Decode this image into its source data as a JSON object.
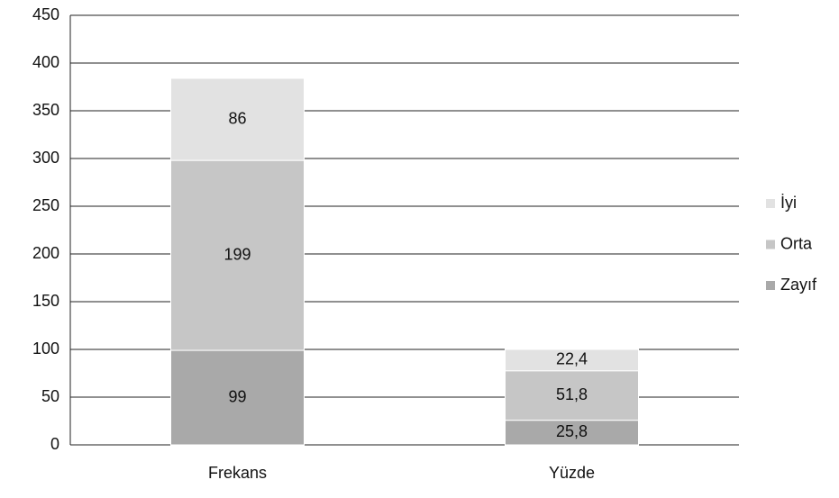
{
  "chart_data": {
    "type": "bar",
    "stacked": true,
    "categories": [
      "Frekans",
      "Yüzde"
    ],
    "series": [
      {
        "name": "Zayıf",
        "color": "#a9a9a9",
        "values": [
          99,
          25.8
        ],
        "value_labels": [
          "99",
          "25,8"
        ]
      },
      {
        "name": "Orta",
        "color": "#c6c6c6",
        "values": [
          199,
          51.8
        ],
        "value_labels": [
          "199",
          "51,8"
        ]
      },
      {
        "name": "İyi",
        "color": "#e2e2e2",
        "values": [
          86,
          22.4
        ],
        "value_labels": [
          "86",
          "22,4"
        ]
      }
    ],
    "ylim": [
      0,
      450
    ],
    "yticks": [
      0,
      50,
      100,
      150,
      200,
      250,
      300,
      350,
      400,
      450
    ],
    "grid": true,
    "legend": "right"
  }
}
